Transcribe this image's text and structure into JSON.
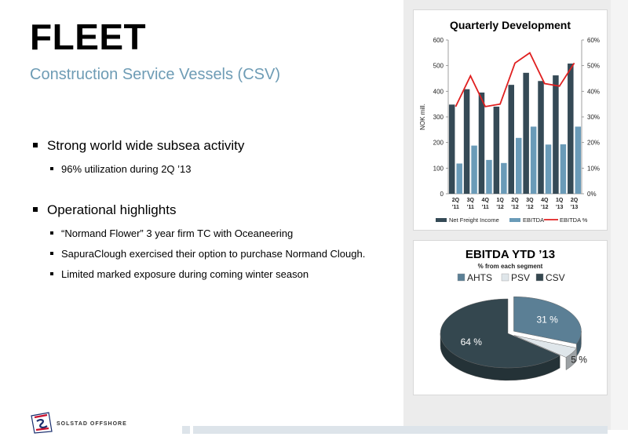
{
  "slide": {
    "title": "FLEET",
    "subtitle": "Construction Service Vessels (CSV)"
  },
  "bullets": {
    "b1": "Strong world wide subsea activity",
    "b1_sub1": "96% utilization during 2Q ’13",
    "b2": "Operational highlights",
    "b2_sub1": "“Normand Flower” 3 year firm TC with Oceaneering",
    "b2_sub2": "SapuraClough exercised their option to purchase Normand Clough.",
    "b2_sub3": "Limited marked exposure during coming winter season"
  },
  "footer": {
    "logo_text": "SOLSTAD OFFSHORE"
  },
  "chart_data": [
    {
      "type": "bar",
      "title": "Quarterly Development",
      "ylabel": "NOK mill.",
      "ylim": [
        0,
        600
      ],
      "y2lim": [
        0,
        0.6
      ],
      "yticks": [
        "0",
        "100",
        "200",
        "300",
        "400",
        "500",
        "600"
      ],
      "y2ticks": [
        "0%",
        "10%",
        "20%",
        "30%",
        "40%",
        "50%",
        "60%"
      ],
      "categories": [
        [
          "2Q",
          "'11"
        ],
        [
          "3Q",
          "'11"
        ],
        [
          "4Q",
          "'11"
        ],
        [
          "1Q",
          "'12"
        ],
        [
          "2Q",
          "'12"
        ],
        [
          "3Q",
          "'12"
        ],
        [
          "4Q",
          "'12"
        ],
        [
          "1Q",
          "'13"
        ],
        [
          "2Q",
          "'13"
        ]
      ],
      "series": [
        {
          "name": "Net Freight Income",
          "kind": "bar",
          "color": "#354a56",
          "values": [
            348,
            408,
            395,
            340,
            425,
            472,
            440,
            462,
            508
          ]
        },
        {
          "name": "EBITDA",
          "kind": "bar",
          "color": "#6a9bb8",
          "values": [
            118,
            188,
            132,
            120,
            218,
            262,
            192,
            193,
            262
          ]
        },
        {
          "name": "EBITDA %",
          "kind": "line",
          "axis": "right",
          "color": "#e02020",
          "values": [
            0.34,
            0.46,
            0.34,
            0.35,
            0.51,
            0.55,
            0.43,
            0.42,
            0.51
          ]
        }
      ],
      "legend_position": "bottom",
      "grid": false
    },
    {
      "type": "pie",
      "title": "EBITDA YTD ’13",
      "subtitle": "% from each segment",
      "style": "3d",
      "legend_position": "top",
      "slices": [
        {
          "name": "AHTS",
          "value": 31,
          "label": "31 %",
          "color": "#5b7f95"
        },
        {
          "name": "PSV",
          "value": 5,
          "label": "5 %",
          "color": "#dfe6ea"
        },
        {
          "name": "CSV",
          "value": 64,
          "label": "64 %",
          "color": "#34474f"
        }
      ]
    }
  ]
}
